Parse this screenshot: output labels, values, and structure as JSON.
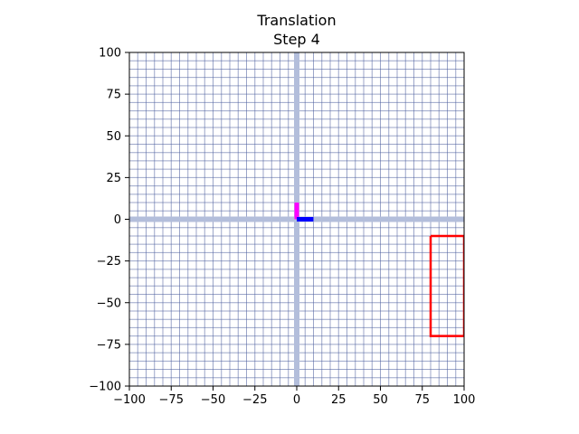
{
  "chart_data": {
    "type": "line",
    "title": "Translation",
    "subtitle": "Step 4",
    "xlim": [
      -100,
      100
    ],
    "ylim": [
      -100,
      100
    ],
    "xticks": [
      -100,
      -75,
      -50,
      -25,
      0,
      25,
      50,
      75,
      100
    ],
    "yticks": [
      -100,
      -75,
      -50,
      -25,
      0,
      25,
      50,
      75,
      100
    ],
    "xtick_labels": [
      "−100",
      "−75",
      "−50",
      "−25",
      "0",
      "25",
      "50",
      "75",
      "100"
    ],
    "ytick_labels": [
      "−100",
      "−75",
      "−50",
      "−25",
      "0",
      "25",
      "50",
      "75",
      "100"
    ],
    "grid": true,
    "grid_step": 5,
    "grid_color": "#4b5c9c",
    "axis_line_color": "#b3bedb",
    "series": [
      {
        "id": "basis-y",
        "color": "#ff00ff",
        "x": [
          0,
          0
        ],
        "y": [
          0,
          10
        ]
      },
      {
        "id": "basis-x",
        "color": "#0000ff",
        "x": [
          0,
          10
        ],
        "y": [
          0,
          0
        ]
      },
      {
        "id": "rectangle",
        "color": "#ff0000",
        "x": [
          80,
          100,
          100,
          80,
          80
        ],
        "y": [
          -10,
          -10,
          -70,
          -70,
          -10
        ]
      }
    ]
  }
}
